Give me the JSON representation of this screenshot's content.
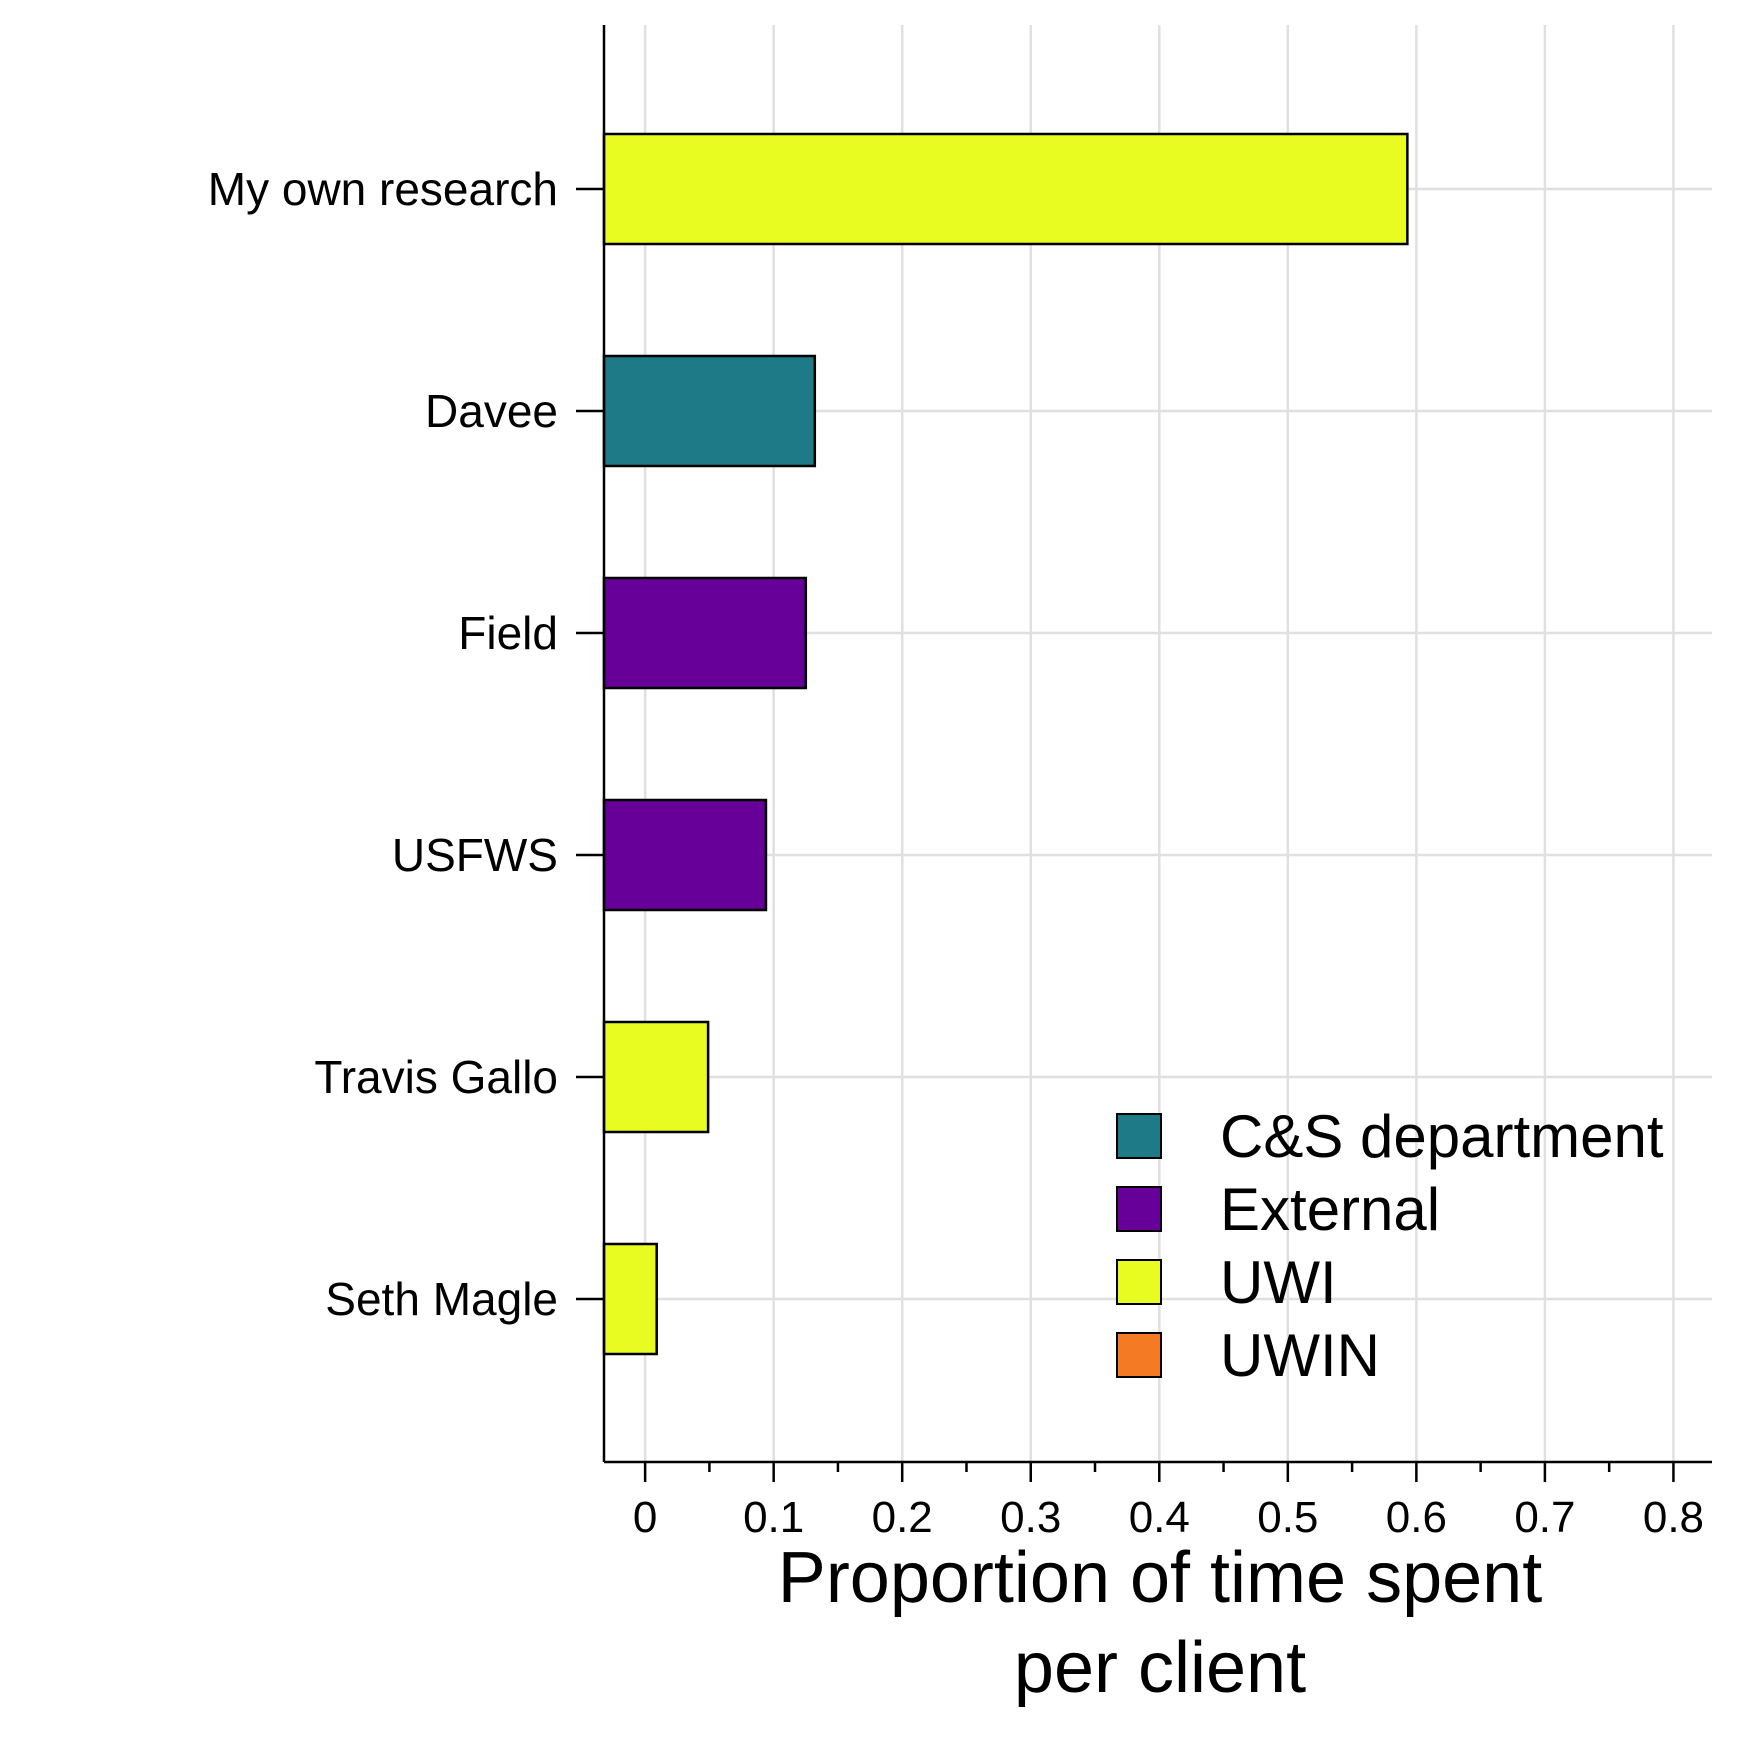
{
  "chart_data": {
    "type": "bar",
    "orientation": "horizontal",
    "categories": [
      "My own research",
      "Davee",
      "Field",
      "USFWS",
      "Travis Gallo",
      "Seth Magle"
    ],
    "values": [
      0.593,
      0.132,
      0.125,
      0.094,
      0.049,
      0.009
    ],
    "groups": [
      "UWI",
      "C&S department",
      "External",
      "External",
      "UWI",
      "UWI"
    ],
    "xlabel_lines": [
      "Proportion of time spent",
      "per client"
    ],
    "ylabel": "",
    "xlim": [
      -0.032,
      0.83
    ],
    "xticks": [
      0,
      0.1,
      0.2,
      0.3,
      0.4,
      0.5,
      0.6,
      0.7,
      0.8
    ],
    "xtick_labels": [
      "0",
      "0.1",
      "0.2",
      "0.3",
      "0.4",
      "0.5",
      "0.6",
      "0.7",
      "0.8"
    ],
    "grid": true,
    "legend": {
      "placement": "bottom-right",
      "entries": [
        {
          "label": "C&S department",
          "color": "#1f7a87"
        },
        {
          "label": "External",
          "color": "#660099"
        },
        {
          "label": "UWI",
          "color": "#e8fc22"
        },
        {
          "label": "UWIN",
          "color": "#f57a24"
        }
      ]
    }
  }
}
